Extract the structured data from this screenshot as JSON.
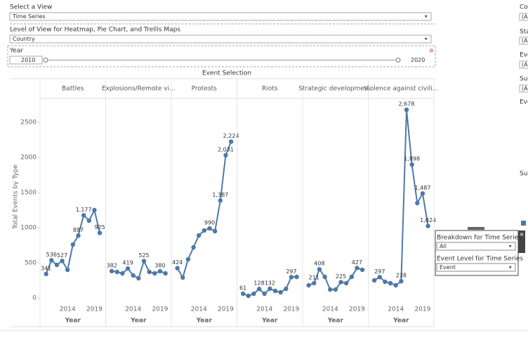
{
  "controls": {
    "view_label": "Select a View",
    "view_value": "Time Series",
    "level_label": "Level of View for Heatmap, Pie Chart, and Trellis Maps",
    "level_value": "Country",
    "year_label": "Year",
    "year_min": "2010",
    "year_max": "2020"
  },
  "side_labels": [
    "Cou",
    "Sta",
    "Eve",
    "Sub",
    "Eve",
    "Sub"
  ],
  "side_values": [
    "(A",
    "(A",
    "(A",
    "(A"
  ],
  "floating": {
    "breakdown_label": "Breakdown for Time Series",
    "breakdown_value": "All",
    "event_label": "Event Level for Time Series",
    "event_value": "Event"
  },
  "chart_data": {
    "type": "line",
    "title": "Event Selection",
    "y_label": "Total Events by Type",
    "x_label": "Year",
    "color": "#4e79a7",
    "grid": false,
    "x": [
      2010,
      2011,
      2012,
      2013,
      2014,
      2015,
      2016,
      2017,
      2018,
      2019,
      2020
    ],
    "xlim": [
      2008.87,
      2021.1
    ],
    "xticks": [
      2014,
      2019
    ],
    "ylim": [
      -80,
      2840
    ],
    "yticks": [
      0,
      500,
      1000,
      1500,
      2000,
      2500
    ],
    "series": [
      {
        "name": "Battles",
        "values": [
          341,
          536,
          470,
          527,
          400,
          760,
          887,
          1177,
          1100,
          1250,
          925
        ],
        "value_labels": [
          "341",
          "536",
          null,
          "527",
          null,
          null,
          "887",
          "1,177",
          null,
          null,
          "925"
        ]
      },
      {
        "name": "Explosions/Remote vi...",
        "values": [
          382,
          370,
          350,
          419,
          320,
          280,
          525,
          370,
          350,
          380,
          350
        ],
        "value_labels": [
          "382",
          null,
          null,
          "419",
          null,
          null,
          "525",
          null,
          null,
          "380",
          null
        ]
      },
      {
        "name": "Protests",
        "values": [
          424,
          290,
          550,
          720,
          890,
          960,
          990,
          950,
          1387,
          2031,
          2224
        ],
        "value_labels": [
          "424",
          null,
          null,
          null,
          null,
          null,
          "990",
          null,
          "1,387",
          "2,031",
          "2,224"
        ]
      },
      {
        "name": "Riots",
        "values": [
          61,
          30,
          60,
          128,
          60,
          132,
          100,
          80,
          130,
          297,
          300
        ],
        "value_labels": [
          "61",
          null,
          null,
          "128",
          null,
          "132",
          null,
          null,
          null,
          "297",
          null
        ]
      },
      {
        "name": "Strategic developmen..",
        "values": [
          180,
          211,
          408,
          300,
          120,
          120,
          225,
          210,
          300,
          427,
          400
        ],
        "value_labels": [
          null,
          "211",
          "408",
          null,
          null,
          null,
          "225",
          null,
          null,
          "427",
          null
        ]
      },
      {
        "name": "Violence against civili...",
        "values": [
          250,
          297,
          230,
          210,
          180,
          238,
          2678,
          1898,
          1350,
          1487,
          1024
        ],
        "value_labels": [
          null,
          "297",
          null,
          null,
          null,
          "238",
          "2,678",
          "1,898",
          null,
          "1,487",
          "1,024"
        ]
      }
    ]
  }
}
